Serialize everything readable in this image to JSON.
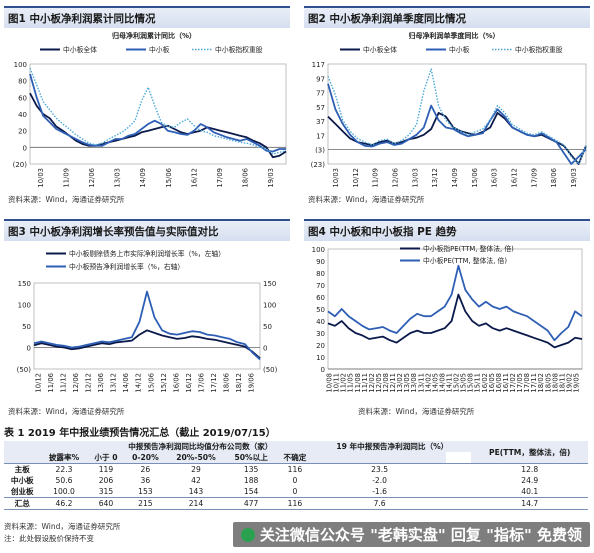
{
  "fig1": {
    "title": "图1  中小板净利润累计同比情况",
    "source": "资料来源：Wind，海通证券研究所",
    "chart_data": {
      "type": "line",
      "title": "归母净利润累计同比（%）",
      "ylim": [
        -20,
        100
      ],
      "yticks": [
        "100",
        "80",
        "60",
        "40",
        "20",
        "0",
        "(20)"
      ],
      "xticks": [
        "10/03",
        "11/09",
        "12/06",
        "13/03",
        "14/09",
        "15/06",
        "16/12",
        "17/09",
        "18/06",
        "19/03"
      ],
      "series": [
        {
          "name": "中小板全体",
          "color": "#0b1a4a",
          "style": "solid",
          "values": [
            65,
            50,
            40,
            35,
            25,
            20,
            14,
            8,
            4,
            2,
            2,
            4,
            6,
            8,
            10,
            12,
            14,
            18,
            20,
            22,
            24,
            26,
            22,
            18,
            16,
            18,
            20,
            24,
            22,
            20,
            18,
            16,
            14,
            12,
            8,
            5,
            0,
            -12,
            -10,
            -5
          ]
        },
        {
          "name": "中小板",
          "color": "#2e5fb5",
          "style": "solid",
          "values": [
            88,
            60,
            38,
            30,
            22,
            18,
            14,
            10,
            6,
            3,
            2,
            2,
            6,
            10,
            10,
            14,
            16,
            22,
            28,
            32,
            28,
            20,
            18,
            16,
            15,
            20,
            28,
            24,
            18,
            15,
            12,
            10,
            8,
            10,
            6,
            2,
            -4,
            -5,
            -2,
            -2
          ]
        },
        {
          "name": "中小板指权重股",
          "color": "#4aa8d8",
          "style": "dotted",
          "values": [
            95,
            75,
            55,
            45,
            35,
            28,
            22,
            15,
            10,
            5,
            3,
            5,
            10,
            14,
            18,
            24,
            32,
            56,
            72,
            50,
            30,
            25,
            24,
            30,
            34,
            26,
            20,
            18,
            14,
            12,
            10,
            8,
            6,
            5,
            3,
            0,
            -2,
            -8,
            -6,
            -4
          ]
        }
      ]
    }
  },
  "fig2": {
    "title": "图2  中小板净利润单季度同比情况",
    "source": "资料来源：Wind，海通证券研究所",
    "chart_data": {
      "type": "line",
      "title": "归母净利润单季度同比（%）",
      "ylim": [
        -20,
        117
      ],
      "yticks": [
        "117",
        "97",
        "77",
        "57",
        "37",
        "17",
        "(3)",
        "(23)"
      ],
      "xticks": [
        "10/03",
        "10/12",
        "11/09",
        "12/06",
        "13/03",
        "13/12",
        "14/09",
        "15/06",
        "16/03",
        "16/12",
        "17/09",
        "18/06",
        "19/03"
      ],
      "series": [
        {
          "name": "中小板全体",
          "color": "#0b1a4a",
          "style": "solid",
          "values": [
            45,
            35,
            25,
            15,
            10,
            8,
            6,
            10,
            12,
            8,
            10,
            14,
            16,
            20,
            28,
            50,
            45,
            30,
            25,
            22,
            20,
            24,
            30,
            50,
            42,
            30,
            25,
            20,
            18,
            20,
            15,
            10,
            5,
            -8,
            -30,
            5
          ]
        },
        {
          "name": "中小板",
          "color": "#2e5fb5",
          "style": "solid",
          "values": [
            90,
            55,
            35,
            20,
            10,
            5,
            4,
            8,
            10,
            6,
            8,
            14,
            20,
            30,
            60,
            40,
            30,
            28,
            22,
            18,
            20,
            22,
            40,
            55,
            45,
            30,
            25,
            20,
            18,
            22,
            16,
            10,
            -5,
            -25,
            -10,
            0
          ]
        },
        {
          "name": "中小板指权重股",
          "color": "#4aa8d8",
          "style": "dotted",
          "values": [
            100,
            75,
            40,
            25,
            15,
            10,
            6,
            12,
            14,
            8,
            12,
            20,
            34,
            80,
            110,
            60,
            40,
            30,
            25,
            20,
            24,
            28,
            40,
            60,
            50,
            34,
            28,
            22,
            20,
            24,
            18,
            12,
            6,
            -10,
            -20,
            5
          ]
        }
      ]
    }
  },
  "fig3": {
    "title": "图3  中小板净利润增长率预告值与实际值对比",
    "source": "资料来源：Wind，海通证券研究所",
    "chart_data": {
      "type": "line",
      "left_ylim": [
        -50,
        150
      ],
      "right_ylim": [
        -50,
        150
      ],
      "left_yticks": [
        "150",
        "100",
        "50",
        "0",
        "(50)"
      ],
      "right_yticks": [
        "150",
        "100",
        "50",
        "0",
        "(50)"
      ],
      "xticks": [
        "10/12",
        "11/06",
        "11/12",
        "12/06",
        "12/12",
        "13/06",
        "13/12",
        "14/06",
        "14/12",
        "15/06",
        "15/12",
        "16/06",
        "16/12",
        "17/06",
        "17/12",
        "18/06",
        "18/12",
        "19/06"
      ],
      "series": [
        {
          "name": "中小板剔除债务上市实际净利润增长率（%，左轴）",
          "color": "#0b1a4a",
          "style": "solid",
          "axis": "left",
          "values": [
            5,
            10,
            6,
            2,
            0,
            -4,
            -2,
            2,
            6,
            10,
            8,
            12,
            14,
            16,
            30,
            40,
            34,
            28,
            24,
            20,
            22,
            26,
            24,
            20,
            18,
            14,
            10,
            6,
            2,
            -10,
            -25
          ]
        },
        {
          "name": "中小板预告净利润增长率（%，右轴）",
          "color": "#2e5fb5",
          "style": "solid",
          "axis": "right",
          "values": [
            10,
            14,
            10,
            6,
            4,
            0,
            2,
            6,
            10,
            14,
            12,
            16,
            20,
            24,
            60,
            130,
            70,
            40,
            32,
            30,
            34,
            38,
            36,
            30,
            28,
            24,
            20,
            12,
            8,
            -12,
            -28
          ]
        }
      ]
    }
  },
  "fig4": {
    "title": "图4  中小板和中小板指 PE 趋势",
    "source": "资料来源：Wind，海通证券研究所",
    "chart_data": {
      "type": "line",
      "ylim": [
        0,
        100
      ],
      "yticks": [
        "100",
        "90",
        "80",
        "70",
        "60",
        "50",
        "40",
        "30",
        "20",
        "10",
        "0"
      ],
      "xticks": [
        "10/08",
        "10/11",
        "11/02",
        "11/05",
        "11/08",
        "11/11",
        "12/02",
        "12/05",
        "12/08",
        "12/11",
        "13/02",
        "13/05",
        "13/08",
        "13/11",
        "14/02",
        "14/05",
        "14/08",
        "14/11",
        "15/02",
        "15/05",
        "15/08",
        "15/11",
        "16/02",
        "16/05",
        "16/08",
        "16/11",
        "17/02",
        "17/05",
        "17/08",
        "17/11",
        "18/02",
        "18/05",
        "18/08",
        "18/11",
        "19/02",
        "19/05"
      ],
      "series": [
        {
          "name": "中小板指PE(TTM, 整体法, 倍)",
          "color": "#0b1a4a",
          "style": "solid",
          "values": [
            38,
            36,
            40,
            34,
            30,
            28,
            25,
            26,
            27,
            24,
            22,
            26,
            30,
            32,
            30,
            30,
            32,
            34,
            40,
            62,
            48,
            40,
            36,
            38,
            34,
            32,
            34,
            32,
            30,
            28,
            26,
            24,
            22,
            18,
            20,
            22,
            26,
            25
          ]
        },
        {
          "name": "中小板PE(TTM, 整体法, 倍)",
          "color": "#2e5fb5",
          "style": "solid",
          "values": [
            48,
            44,
            50,
            44,
            40,
            36,
            33,
            34,
            35,
            32,
            30,
            36,
            42,
            46,
            44,
            44,
            48,
            52,
            62,
            86,
            66,
            58,
            52,
            56,
            52,
            50,
            52,
            48,
            46,
            44,
            40,
            36,
            32,
            24,
            30,
            35,
            48,
            44
          ]
        }
      ]
    }
  },
  "table1": {
    "title": "表 1  2019 年中报业绩预告情况汇总（截止 2019/07/15）",
    "header_group_a": "中报预告净利润同比均值分布公司数（家）",
    "header_group_b": "19 年中报预告净利润同比（%）",
    "header_pe": "PE(TTM，整体法，倍)",
    "col_rate": "披露率%",
    "col_lt0": "小于 0",
    "col_0_20": "0-20%",
    "col_20_50": "20%-50%",
    "col_gt50": "50%以上",
    "col_uncertain": "不确定",
    "rows": [
      {
        "label": "主板",
        "rate": "22.3",
        "lt0": "119",
        "b0_20": "26",
        "b20_50": "29",
        "gt50": "135",
        "uncertain": "116",
        "growth": "23.5",
        "pe": "12.8"
      },
      {
        "label": "中小板",
        "rate": "50.6",
        "lt0": "206",
        "b0_20": "36",
        "b20_50": "42",
        "gt50": "188",
        "uncertain": "0",
        "growth": "-2.0",
        "pe": "24.9"
      },
      {
        "label": "创业板",
        "rate": "100.0",
        "lt0": "315",
        "b0_20": "153",
        "b20_50": "143",
        "gt50": "154",
        "uncertain": "0",
        "growth": "-1.6",
        "pe": "40.1"
      },
      {
        "label": "汇总",
        "rate": "46.2",
        "lt0": "640",
        "b0_20": "215",
        "b20_50": "214",
        "gt50": "477",
        "uncertain": "116",
        "growth": "7.6",
        "pe": "14.7"
      }
    ],
    "note1": "资料来源：Wind，海通证券研究所",
    "note2": "注：此处假设股价保持不变"
  },
  "watermark": "关注微信公众号 \"老韩实盘\" 回复 \"指标\" 免费领"
}
